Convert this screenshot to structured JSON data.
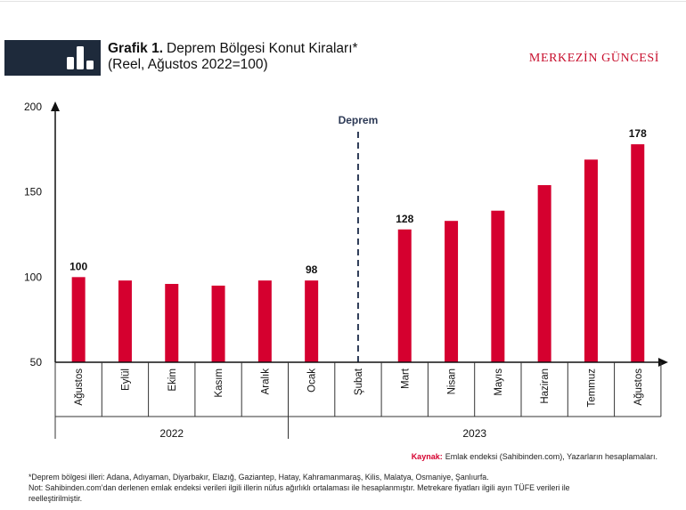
{
  "colors": {
    "bar": "#d5002f",
    "header_bg": "#1e2a3b",
    "header_icon": "#ffffff",
    "brand": "#c8102e",
    "event_line": "#2d3a56",
    "source_label": "#d5002f",
    "axis": "#111111"
  },
  "header": {
    "icon": "bar-chart-icon",
    "brand": "MERKEZİN GÜNCESİ"
  },
  "chart_data": {
    "type": "bar",
    "title_prefix": "Grafik 1.",
    "title": "Deprem Bölgesi Konut Kiraları*",
    "subtitle": "(Reel, Ağustos 2022=100)",
    "categories": [
      "Ağustos",
      "Eylül",
      "Ekim",
      "Kasım",
      "Aralık",
      "Ocak",
      "Şubat",
      "Mart",
      "Nisan",
      "Mayıs",
      "Haziran",
      "Temmuz",
      "Ağustos"
    ],
    "groups": [
      {
        "label": "2022",
        "first": 0,
        "last": 4
      },
      {
        "label": "2023",
        "first": 5,
        "last": 12
      }
    ],
    "values": [
      100,
      98,
      96,
      95,
      98,
      98,
      null,
      128,
      133,
      139,
      154,
      169,
      178
    ],
    "data_labels": [
      "100",
      null,
      null,
      null,
      null,
      "98",
      null,
      "128",
      null,
      null,
      null,
      null,
      "178"
    ],
    "ylim": [
      50,
      200
    ],
    "yticks": [
      50,
      100,
      150,
      200
    ],
    "event": {
      "label": "Deprem",
      "category": "Şubat"
    },
    "grid": false,
    "legend": "none"
  },
  "footer": {
    "source_label": "Kaynak:",
    "source_text": "Emlak endeksi (Sahibinden.com), Yazarların hesaplamaları.",
    "notes": [
      "*Deprem bölgesi illeri: Adana, Adıyaman, Diyarbakır, Elazığ, Gaziantep, Hatay, Kahramanmaraş, Kilis, Malatya, Osmaniye, Şanlıurfa.",
      "Not: Sahibinden.com’dan derlenen emlak endeksi verileri ilgili illerin nüfus ağırlıklı ortalaması ile hesaplanmıştır. Metrekare fiyatları ilgili ayın TÜFE verileri ile",
      "reelleştirilmiştir."
    ]
  }
}
